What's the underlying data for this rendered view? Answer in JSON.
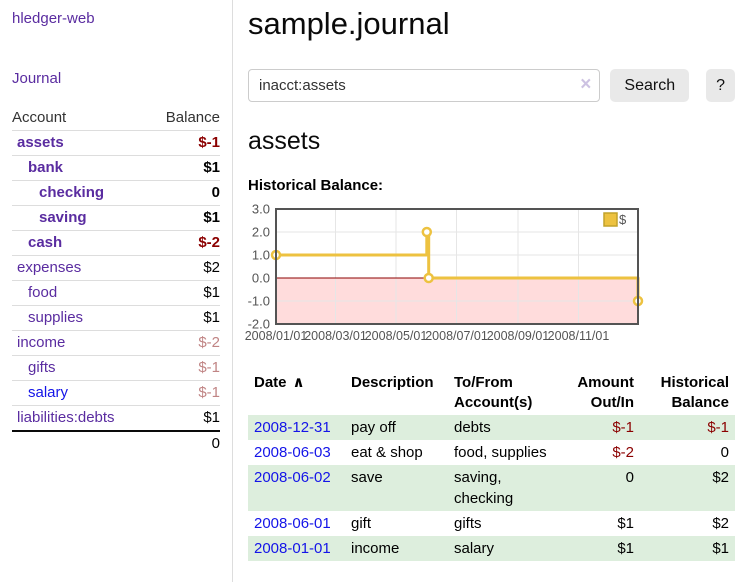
{
  "app": {
    "title": "hledger-web"
  },
  "sidebar": {
    "nav": [
      {
        "label": "Journal"
      }
    ],
    "accounts_table": {
      "headers": {
        "account": "Account",
        "balance": "Balance"
      },
      "accounts": [
        {
          "name": "assets",
          "indent": 1,
          "bold": true,
          "balance": "$-1"
        },
        {
          "name": "bank",
          "indent": 2,
          "bold": true,
          "balance": "$1"
        },
        {
          "name": "checking",
          "indent": 3,
          "bold": true,
          "balance": "0"
        },
        {
          "name": "saving",
          "indent": 3,
          "bold": true,
          "balance": "$1"
        },
        {
          "name": "cash",
          "indent": 2,
          "bold": true,
          "balance": "$-2"
        },
        {
          "name": "expenses",
          "indent": 1,
          "bold": false,
          "balance": "$2"
        },
        {
          "name": "food",
          "indent": 2,
          "bold": false,
          "balance": "$1"
        },
        {
          "name": "supplies",
          "indent": 2,
          "bold": false,
          "balance": "$1"
        },
        {
          "name": "income",
          "indent": 1,
          "bold": false,
          "balance": "$-2"
        },
        {
          "name": "gifts",
          "indent": 2,
          "bold": false,
          "balance": "$-1"
        },
        {
          "name": "salary",
          "indent": 2,
          "bold": false,
          "balance": "$-1",
          "link_style": "unvisited"
        },
        {
          "name": "liabilities:debts",
          "indent": 1,
          "bold": false,
          "balance": "$1"
        }
      ],
      "total": "0"
    }
  },
  "header": {
    "title": "sample.journal"
  },
  "search": {
    "value": "inacct:assets",
    "clear_icon": "×",
    "button_label": "Search",
    "help_label": "?"
  },
  "main": {
    "account_heading": "assets"
  },
  "chart_data": {
    "type": "line",
    "title": "Historical Balance:",
    "style": "steps",
    "x_range": [
      "2008-01-01",
      "2008-12-31"
    ],
    "ylim": [
      -2,
      3
    ],
    "y_ticks": [
      "3.0",
      "2.0",
      "1.0",
      "0.0",
      "-1.0",
      "-2.0"
    ],
    "x_ticks": [
      "2008/01/01",
      "2008/03/01",
      "2008/05/01",
      "2008/07/01",
      "2008/09/01",
      "2008/11/01"
    ],
    "grid": true,
    "legend": {
      "position": "top-right",
      "label": "$",
      "color": "#edc240"
    },
    "negative_region": {
      "from": 0,
      "to": -2,
      "fill": "#ffdcdc",
      "zero_line_color": "#8b0000"
    },
    "series": [
      {
        "name": "$",
        "color": "#edc240",
        "marker": "open-circle",
        "points": [
          [
            "2008-01-01",
            1
          ],
          [
            "2008-06-01",
            2
          ],
          [
            "2008-06-03",
            0
          ],
          [
            "2008-12-31",
            -1
          ]
        ]
      }
    ]
  },
  "register": {
    "columns": [
      "Date",
      "Description",
      "To/From Account(s)",
      "Amount Out/In",
      "Historical Balance"
    ],
    "sort_indicator": "∧",
    "rows": [
      {
        "date": "2008-12-31",
        "description": "pay off",
        "accounts": "debts",
        "amount": "$-1",
        "balance": "$-1"
      },
      {
        "date": "2008-06-03",
        "description": "eat & shop",
        "accounts": "food, supplies",
        "amount": "$-2",
        "balance": "0"
      },
      {
        "date": "2008-06-02",
        "description": "save",
        "accounts": "saving, checking",
        "amount": "0",
        "balance": "$2"
      },
      {
        "date": "2008-06-01",
        "description": "gift",
        "accounts": "gifts",
        "amount": "$1",
        "balance": "$2"
      },
      {
        "date": "2008-01-01",
        "description": "income",
        "accounts": "salary",
        "amount": "$1",
        "balance": "$1"
      }
    ]
  },
  "colors": {
    "link_visited_purple": "#5a2ca0",
    "link_unvisited_blue": "#1414e8",
    "negative_strong": "#8b0000",
    "negative_muted": "#c08484",
    "row_stripe_green": "#ddeedd",
    "chart_series_yellow": "#edc240",
    "chart_negative_fill": "#ffdcdc",
    "chart_zero_line": "#8b0000"
  }
}
